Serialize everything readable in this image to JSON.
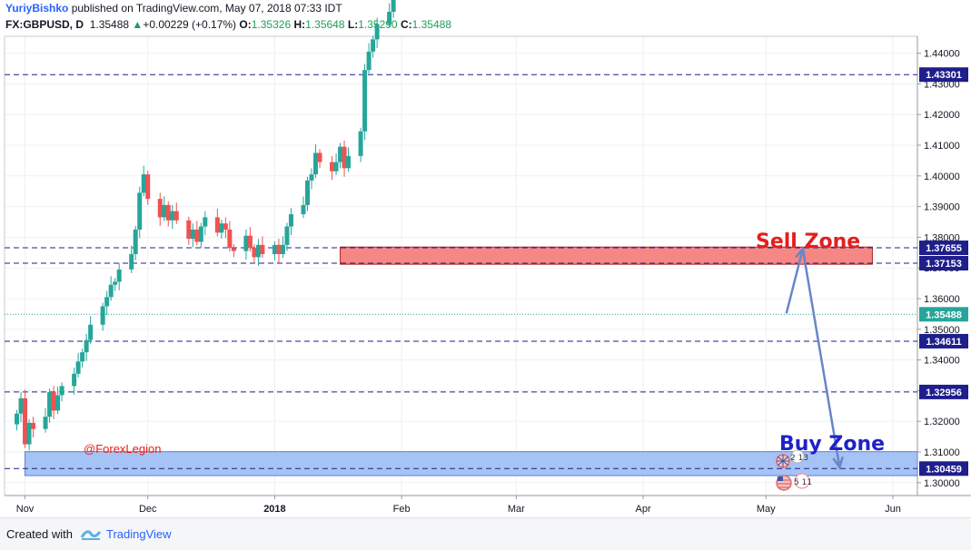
{
  "header": {
    "author": "YuriyBishko",
    "published": "published on TradingView.com, May 07, 2018 07:33 IDT",
    "symbol": "FX:GBPUSD, D",
    "last": "1.35488",
    "change_arrow": "▲",
    "change": "+0.00229 (+0.17%)",
    "o_label": "O:",
    "o_value": "1.35326",
    "h_label": "H:",
    "h_value": "1.35648",
    "l_label": "L:",
    "l_value": "1.35290",
    "c_label": "C:",
    "c_value": "1.35488"
  },
  "footer": {
    "created_with": "Created with",
    "brand": "TradingView"
  },
  "colors": {
    "up": "#26a69a",
    "down": "#ef5350",
    "sell_zone_fill": "#f78783",
    "buy_zone_fill": "#a5c3f5",
    "level_line": "#1e1e8c",
    "arrow": "#6a85c8",
    "sell_text": "#e31e1e",
    "buy_text": "#1e22c8",
    "watermark": "#e31e1e"
  },
  "chart_data": {
    "type": "candlestick",
    "y_ticks": [
      1.3,
      1.31,
      1.32,
      1.33,
      1.34,
      1.35,
      1.36,
      1.37,
      1.38,
      1.39,
      1.4,
      1.41,
      1.42,
      1.43,
      1.44
    ],
    "y_tick_labels": [
      "1.30000",
      "1.31000",
      "1.32000",
      "1.33000",
      "1.34000",
      "1.35000",
      "1.36000",
      "1.37000",
      "1.38000",
      "1.39000",
      "1.40000",
      "1.41000",
      "1.42000",
      "1.43000",
      "1.44000"
    ],
    "ylim": [
      1.2958,
      1.4455
    ],
    "x_range": [
      "2017-10-27",
      "2018-06-07"
    ],
    "x_ticks": [
      {
        "date": "2017-11-01",
        "label": "Nov",
        "bold": false
      },
      {
        "date": "2017-12-01",
        "label": "Dec",
        "bold": false
      },
      {
        "date": "2018-01-01",
        "label": "2018",
        "bold": true
      },
      {
        "date": "2018-02-01",
        "label": "Feb",
        "bold": false
      },
      {
        "date": "2018-03-01",
        "label": "Mar",
        "bold": false
      },
      {
        "date": "2018-04-01",
        "label": "Apr",
        "bold": false
      },
      {
        "date": "2018-05-01",
        "label": "May",
        "bold": false
      },
      {
        "date": "2018-06-01",
        "label": "Jun",
        "bold": false
      }
    ],
    "levels": [
      {
        "value": 1.43301,
        "label": "1.43301"
      },
      {
        "value": 1.37655,
        "label": "1.37655"
      },
      {
        "value": 1.37153,
        "label": "1.37153"
      },
      {
        "value": 1.34611,
        "label": "1.34611"
      },
      {
        "value": 1.32956,
        "label": "1.32956"
      },
      {
        "value": 1.30459,
        "label": "1.30459"
      }
    ],
    "last_price": {
      "value": 1.35488,
      "label": "1.35488"
    },
    "zones": [
      {
        "name": "Sell Zone",
        "from": 1.3712,
        "to": 1.3768,
        "x0": "2018-01-17",
        "x1": "2018-05-27"
      },
      {
        "name": "Buy Zone",
        "from": 1.3023,
        "to": 1.3101,
        "x0": "2017-11-01",
        "x1": "2018-06-08"
      }
    ],
    "arrow": [
      {
        "date": "2018-05-06",
        "price": 1.3552
      },
      {
        "date": "2018-05-10",
        "price": 1.3762
      },
      {
        "date": "2018-05-19",
        "price": 1.305
      }
    ],
    "annotations": {
      "sell_label": "Sell Zone",
      "buy_label": "Buy Zone",
      "watermark": "@ForexLegion",
      "badge1": "2 13",
      "badge2": "5 11"
    },
    "anchor": {
      "date": "2017-10-30",
      "open": 1.319,
      "close": 1.3225
    },
    "deltas": [
      0.005,
      -0.015,
      0.007,
      -0.002,
      0.004,
      0.008,
      -0.006,
      0.005,
      0.003,
      0.004,
      0.004,
      0.003,
      0.004,
      0.005,
      0.006,
      0.003,
      0.004,
      0.001,
      0.004,
      0.005,
      0.008,
      0.012,
      0.006,
      -0.008,
      -0.006,
      0.004,
      -0.005,
      0.003,
      -0.003,
      -0.006,
      0.003,
      -0.004,
      0.005,
      0.003,
      -0.005,
      0.003,
      -0.002,
      -0.006,
      -0.001,
      0.005,
      -0.004,
      -0.003,
      0.004,
      -0.003,
      0.003,
      -0.003,
      0.003,
      0.006,
      0.004,
      0.003,
      0.008,
      0.002,
      0.007,
      -0.003,
      -0.003,
      0.003,
      0.005,
      -0.007,
      0.004,
      0.008,
      0.02,
      0.006,
      0.004,
      0.005,
      0.004,
      0.008,
      0.012,
      0.011,
      0.011,
      0.01,
      -0.003,
      0.006,
      0.003,
      -0.007,
      -0.002,
      -0.004,
      0.006,
      0.006,
      -0.006,
      -0.003,
      0.008,
      -0.006,
      -0.004,
      -0.006,
      -0.003,
      0.005,
      0.004,
      0.012,
      0.01,
      -0.006,
      -0.005,
      -0.008,
      0.004,
      -0.005,
      0.003,
      0.005,
      -0.004,
      -0.014,
      0.006,
      0.007,
      0.004,
      -0.005,
      0.006,
      -0.004,
      -0.004,
      0.005,
      0.007,
      -0.003,
      0.001,
      0.006,
      0.009,
      0.008,
      0.007,
      0.007,
      -0.004,
      -0.004,
      0.008,
      -0.005,
      -0.004,
      -0.005,
      0.005,
      0.004,
      0.006,
      0.004,
      0.005,
      0.005,
      0.005,
      -0.006,
      -0.006,
      -0.011,
      -0.006,
      -0.008,
      -0.004,
      -0.006,
      -0.011,
      -0.01,
      -0.013,
      -0.006,
      -0.004,
      0.002
    ]
  }
}
